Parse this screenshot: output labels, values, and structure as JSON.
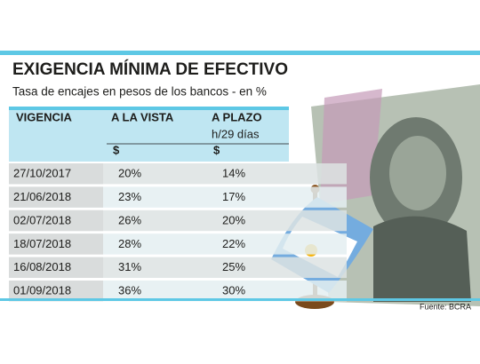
{
  "header": {
    "title": "EXIGENCIA MÍNIMA DE EFECTIVO",
    "subtitle": "Tasa de encajes en pesos de los bancos - en %"
  },
  "table": {
    "columns": [
      [
        "VIGENCIA"
      ],
      [
        "A LA VISTA",
        "$"
      ],
      [
        "A PLAZO",
        "h/29 días",
        "$"
      ]
    ],
    "rows": [
      [
        "27/10/2017",
        "20%",
        "14%"
      ],
      [
        "21/06/2018",
        "23%",
        "17%"
      ],
      [
        "02/07/2018",
        "26%",
        "20%"
      ],
      [
        "18/07/2018",
        "28%",
        "22%"
      ],
      [
        "16/08/2018",
        "31%",
        "25%"
      ],
      [
        "01/09/2018",
        "36%",
        "30%"
      ]
    ]
  },
  "footer": {
    "source": "Fuente: BCRA"
  }
}
